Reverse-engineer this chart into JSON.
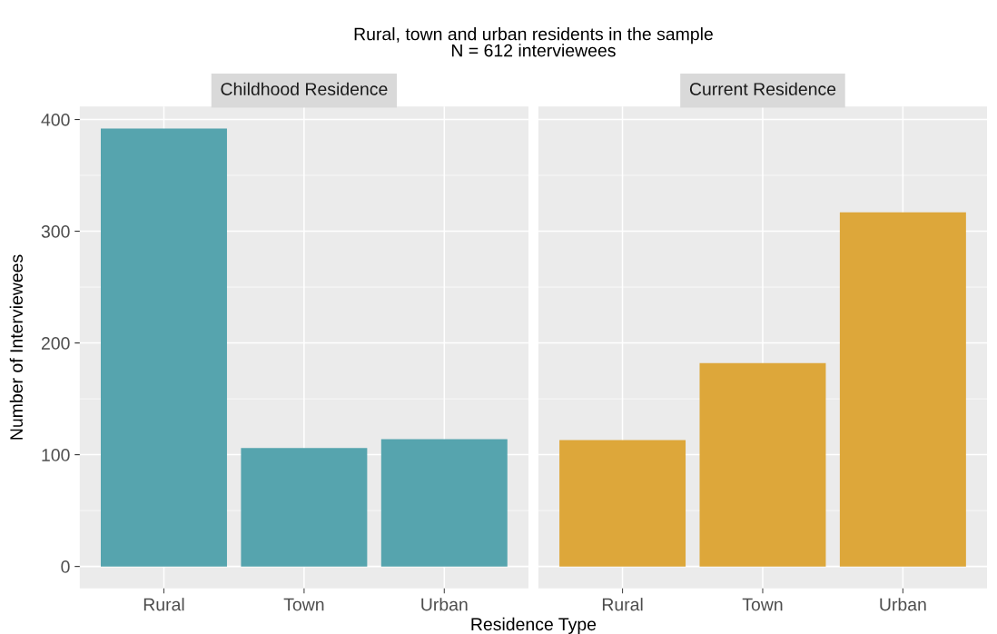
{
  "chart_data": [
    {
      "type": "bar",
      "title": "Childhood Residence",
      "annotations": [
        "Rural, town and urban residents in the sample",
        "N = 612 interviewees"
      ],
      "xlabel": "Residence Type",
      "ylabel": "Number of Interviewees",
      "categories": [
        "Rural",
        "Town",
        "Urban"
      ],
      "values": [
        392,
        106,
        114
      ],
      "color": "#56a4ae",
      "ylim": [
        -19.6,
        411.6
      ],
      "yticks": [
        0,
        100,
        200,
        300,
        400
      ],
      "grid": true
    },
    {
      "type": "bar",
      "title": "Current Residence",
      "categories": [
        "Rural",
        "Town",
        "Urban"
      ],
      "values": [
        113,
        182,
        317
      ],
      "color": "#dda73a",
      "ylim": [
        -19.6,
        411.6
      ],
      "yticks": [
        0,
        100,
        200,
        300,
        400
      ],
      "grid": true,
      "tick_labels": "x"
    }
  ]
}
